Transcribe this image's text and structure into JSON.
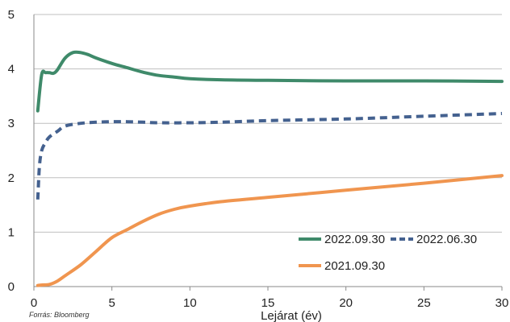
{
  "chart_data": {
    "type": "line",
    "xlabel": "Lejárat (év)",
    "ylabel": "",
    "xlim": [
      0,
      30
    ],
    "ylim": [
      0,
      5
    ],
    "x_ticks": [
      0,
      5,
      10,
      15,
      20,
      25,
      30
    ],
    "y_ticks": [
      0,
      1,
      2,
      3,
      4,
      5
    ],
    "grid": "horizontal",
    "legend_position": "bottom-right",
    "source_note": "Forrás: Bloomberg",
    "series": [
      {
        "name": "2022.09.30",
        "color": "#3f8a6a",
        "dash": "solid",
        "points": [
          [
            0.25,
            3.23
          ],
          [
            0.5,
            3.9
          ],
          [
            0.75,
            3.93
          ],
          [
            1,
            3.93
          ],
          [
            1.25,
            3.92
          ],
          [
            1.5,
            3.98
          ],
          [
            2,
            4.2
          ],
          [
            2.5,
            4.3
          ],
          [
            3,
            4.3
          ],
          [
            3.5,
            4.26
          ],
          [
            4,
            4.2
          ],
          [
            5,
            4.1
          ],
          [
            6,
            4.02
          ],
          [
            7,
            3.94
          ],
          [
            8,
            3.88
          ],
          [
            9,
            3.85
          ],
          [
            10,
            3.82
          ],
          [
            12,
            3.8
          ],
          [
            15,
            3.79
          ],
          [
            20,
            3.78
          ],
          [
            25,
            3.78
          ],
          [
            30,
            3.77
          ]
        ]
      },
      {
        "name": "2022.06.30",
        "color": "#44618f",
        "dash": "dashed",
        "points": [
          [
            0.25,
            1.6
          ],
          [
            0.35,
            2.2
          ],
          [
            0.5,
            2.5
          ],
          [
            0.75,
            2.65
          ],
          [
            1,
            2.75
          ],
          [
            1.5,
            2.85
          ],
          [
            2,
            2.95
          ],
          [
            3,
            3.0
          ],
          [
            4,
            3.02
          ],
          [
            5,
            3.03
          ],
          [
            6,
            3.03
          ],
          [
            7,
            3.02
          ],
          [
            8,
            3.01
          ],
          [
            10,
            3.01
          ],
          [
            12,
            3.02
          ],
          [
            15,
            3.05
          ],
          [
            20,
            3.08
          ],
          [
            25,
            3.13
          ],
          [
            30,
            3.18
          ]
        ]
      },
      {
        "name": "2021.09.30",
        "color": "#f0954f",
        "dash": "solid",
        "points": [
          [
            0.25,
            0.02
          ],
          [
            0.5,
            0.03
          ],
          [
            1,
            0.04
          ],
          [
            1.5,
            0.1
          ],
          [
            2,
            0.2
          ],
          [
            3,
            0.4
          ],
          [
            4,
            0.65
          ],
          [
            5,
            0.9
          ],
          [
            6,
            1.05
          ],
          [
            7,
            1.2
          ],
          [
            8,
            1.33
          ],
          [
            9,
            1.42
          ],
          [
            10,
            1.48
          ],
          [
            12,
            1.56
          ],
          [
            15,
            1.64
          ],
          [
            20,
            1.77
          ],
          [
            25,
            1.9
          ],
          [
            30,
            2.04
          ]
        ]
      }
    ]
  }
}
